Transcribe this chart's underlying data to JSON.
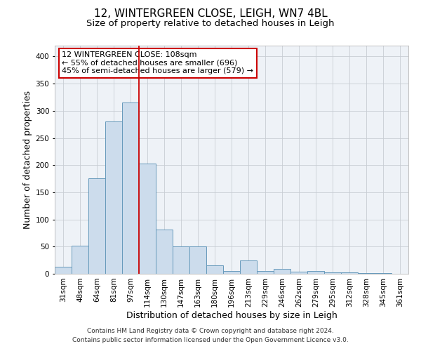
{
  "title": "12, WINTERGREEN CLOSE, LEIGH, WN7 4BL",
  "subtitle": "Size of property relative to detached houses in Leigh",
  "xlabel": "Distribution of detached houses by size in Leigh",
  "ylabel": "Number of detached properties",
  "bar_labels": [
    "31sqm",
    "48sqm",
    "64sqm",
    "81sqm",
    "97sqm",
    "114sqm",
    "130sqm",
    "147sqm",
    "163sqm",
    "180sqm",
    "196sqm",
    "213sqm",
    "229sqm",
    "246sqm",
    "262sqm",
    "279sqm",
    "295sqm",
    "312sqm",
    "328sqm",
    "345sqm",
    "361sqm"
  ],
  "bar_values": [
    13,
    52,
    176,
    280,
    315,
    203,
    81,
    51,
    51,
    16,
    5,
    25,
    5,
    9,
    4,
    5,
    2,
    3,
    1,
    1,
    0
  ],
  "bar_color": "#ccdcec",
  "bar_edge_color": "#6699bb",
  "ylim": [
    0,
    420
  ],
  "yticks": [
    0,
    50,
    100,
    150,
    200,
    250,
    300,
    350,
    400
  ],
  "vline_color": "#cc0000",
  "annotation_line1": "12 WINTERGREEN CLOSE: 108sqm",
  "annotation_line2": "← 55% of detached houses are smaller (696)",
  "annotation_line3": "45% of semi-detached houses are larger (579) →",
  "footer_line1": "Contains HM Land Registry data © Crown copyright and database right 2024.",
  "footer_line2": "Contains public sector information licensed under the Open Government Licence v3.0.",
  "background_color": "#eef2f7",
  "grid_color": "#c8cdd4",
  "title_fontsize": 11,
  "subtitle_fontsize": 9.5,
  "xlabel_fontsize": 9,
  "ylabel_fontsize": 9,
  "tick_fontsize": 7.5,
  "footer_fontsize": 6.5,
  "annot_fontsize": 8
}
